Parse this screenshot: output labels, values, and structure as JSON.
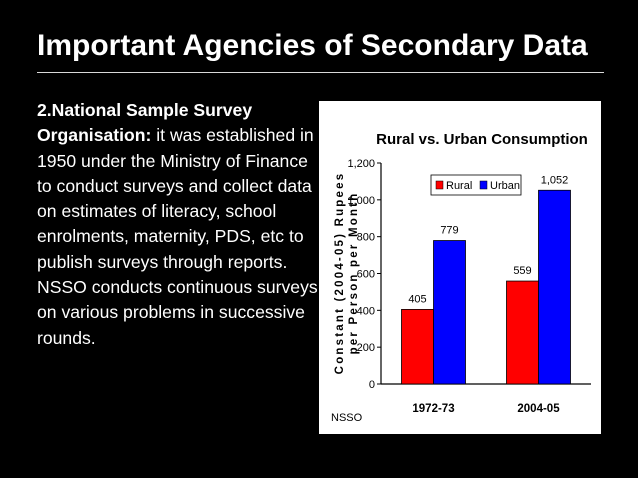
{
  "slide": {
    "title": "Important Agencies of Secondary Data",
    "body_lead": "2.National Sample Survey Organisation:",
    "body_text": " it was established in 1950 under the Ministry of Finance to conduct surveys and collect data on estimates of literacy, school enrolments, maternity, PDS, etc to publish surveys through reports. NSSO conducts continuous surveys on various problems in successive rounds."
  },
  "chart_data": {
    "type": "bar",
    "title": "Rural vs. Urban Consumption",
    "ylabel": "Constant (2004-05) Rupees per Person per Month",
    "ylabel_lines": [
      "Constant (2004-05) Rupees",
      "per Person per Month"
    ],
    "categories": [
      "1972-73",
      "2004-05"
    ],
    "series": [
      {
        "name": "Rural",
        "values": [
          405,
          559
        ],
        "value_labels": [
          "405",
          "559"
        ],
        "color": "#ff0000"
      },
      {
        "name": "Urban",
        "values": [
          779,
          1052
        ],
        "value_labels": [
          "779",
          "1,052"
        ],
        "color": "#0000ff"
      }
    ],
    "ylim": [
      0,
      1200
    ],
    "yticks": [
      0,
      200,
      400,
      600,
      800,
      1000,
      1200
    ],
    "ytick_labels": [
      "0",
      "200",
      "400",
      "600",
      "800",
      "1,000",
      "1,200"
    ],
    "grid": false,
    "legend": "top-right",
    "source_note": "NSSO"
  }
}
